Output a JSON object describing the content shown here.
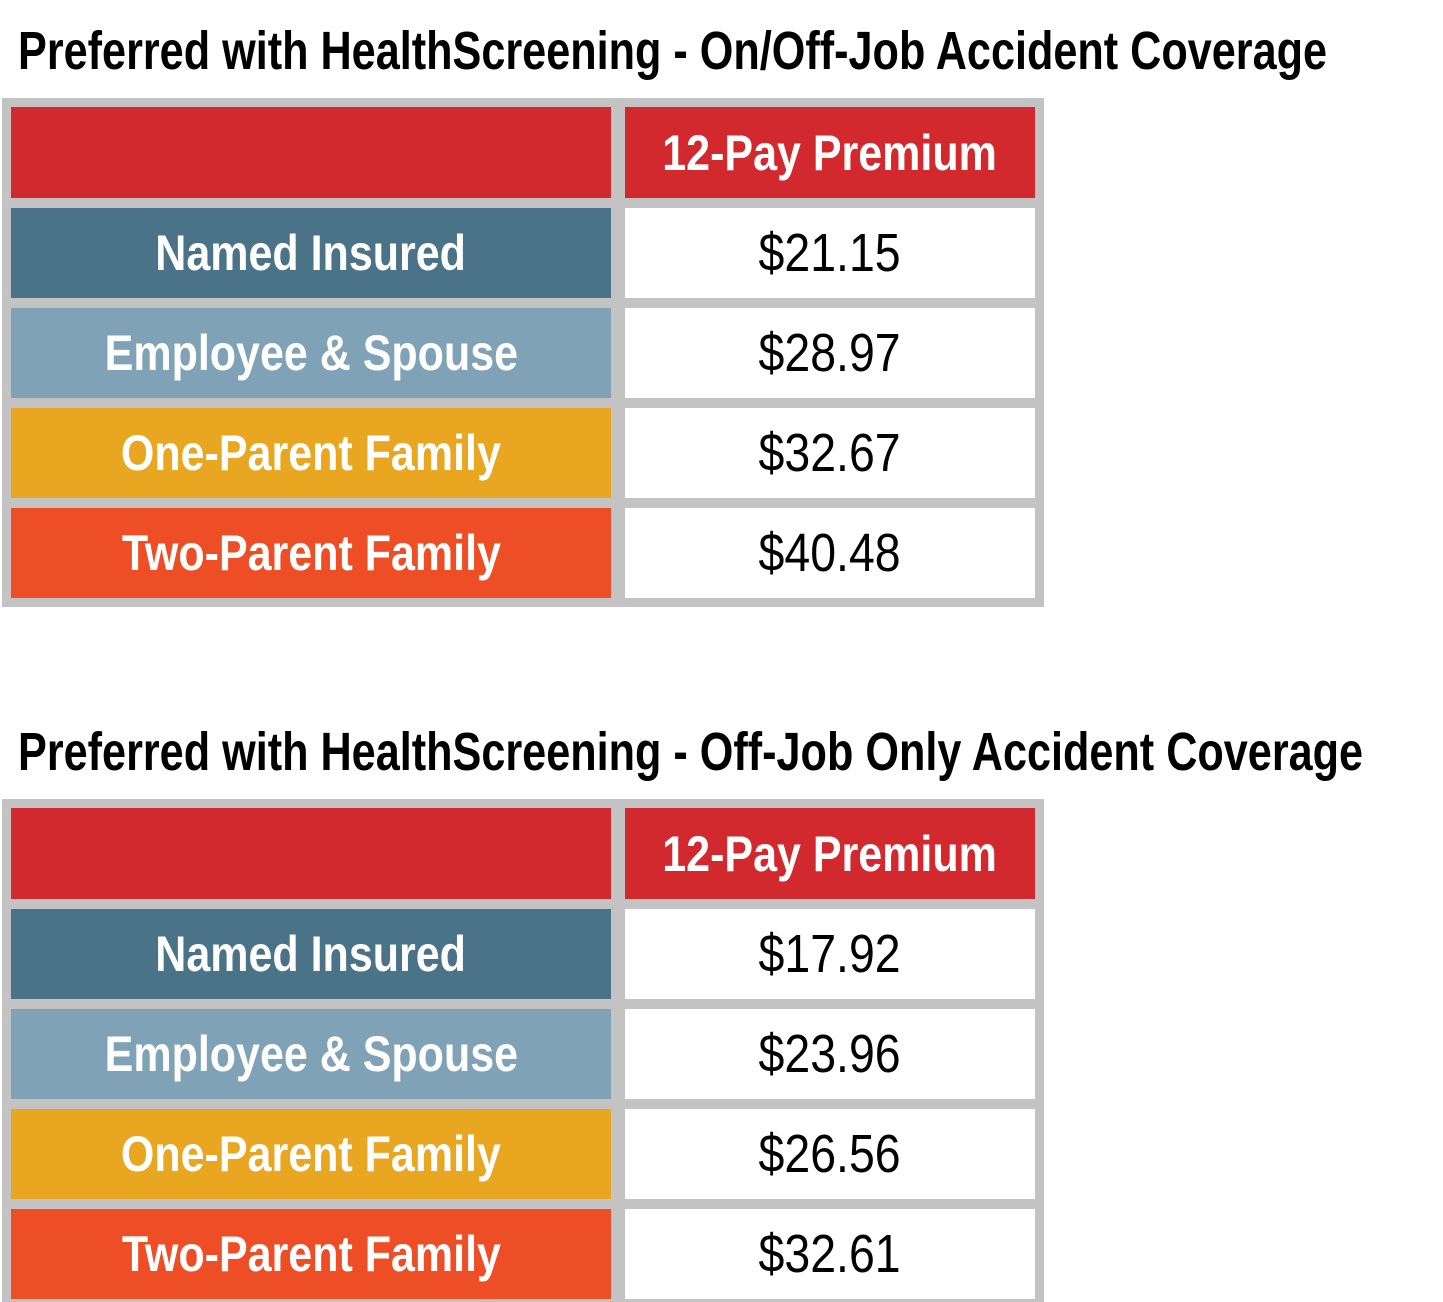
{
  "document": {
    "colors": {
      "header_red": "#D2292F",
      "row_named_insured_blue": "#4A7388",
      "row_employee_spouse_blue": "#7FA2B6",
      "row_one_parent_gold": "#E9A621",
      "row_two_parent_orange": "#ED4E25",
      "table_frame_gray": "#C3C3C3",
      "value_cell_white": "#FFFFFF",
      "title_text": "#000000",
      "label_text": "#FFFFFF",
      "value_text": "#000000"
    },
    "sections": [
      {
        "title": "Preferred with HealthScreening - On/Off-Job Accident Coverage",
        "table": {
          "value_column_header": "12-Pay Premium",
          "rows": [
            {
              "label": "Named Insured",
              "value": "$21.15",
              "color": "#4A7388"
            },
            {
              "label": "Employee & Spouse",
              "value": "$28.97",
              "color": "#7FA2B6"
            },
            {
              "label": "One-Parent Family",
              "value": "$32.67",
              "color": "#E9A621"
            },
            {
              "label": "Two-Parent Family",
              "value": "$40.48",
              "color": "#ED4E25"
            }
          ]
        }
      },
      {
        "title": "Preferred with HealthScreening - Off-Job Only Accident Coverage",
        "table": {
          "value_column_header": "12-Pay Premium",
          "rows": [
            {
              "label": "Named Insured",
              "value": "$17.92",
              "color": "#4A7388"
            },
            {
              "label": "Employee & Spouse",
              "value": "$23.96",
              "color": "#7FA2B6"
            },
            {
              "label": "One-Parent Family",
              "value": "$26.56",
              "color": "#E9A621"
            },
            {
              "label": "Two-Parent Family",
              "value": "$32.61",
              "color": "#ED4E25"
            }
          ]
        }
      }
    ]
  }
}
